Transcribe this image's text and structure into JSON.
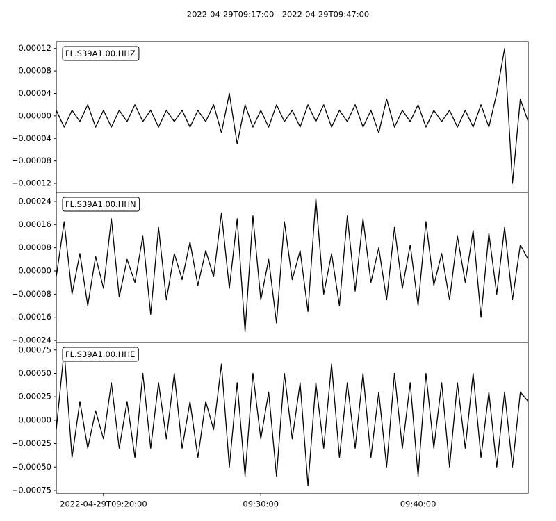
{
  "title": "2022-04-29T09:17:00  -  2022-04-29T09:47:00",
  "chart_data": [
    {
      "type": "line",
      "x": [
        "2022-04-29T09:17:00",
        "2022-04-29T09:17:30",
        "2022-04-29T09:18:00",
        "2022-04-29T09:18:30",
        "2022-04-29T09:19:00",
        "2022-04-29T09:19:30",
        "2022-04-29T09:20:00",
        "2022-04-29T09:20:30",
        "2022-04-29T09:21:00",
        "2022-04-29T09:21:30",
        "2022-04-29T09:22:00",
        "2022-04-29T09:22:30",
        "2022-04-29T09:23:00",
        "2022-04-29T09:23:30",
        "2022-04-29T09:24:00",
        "2022-04-29T09:24:30",
        "2022-04-29T09:25:00",
        "2022-04-29T09:25:30",
        "2022-04-29T09:26:00",
        "2022-04-29T09:26:30",
        "2022-04-29T09:27:00",
        "2022-04-29T09:27:30",
        "2022-04-29T09:28:00",
        "2022-04-29T09:28:30",
        "2022-04-29T09:29:00",
        "2022-04-29T09:29:30",
        "2022-04-29T09:30:00",
        "2022-04-29T09:30:30",
        "2022-04-29T09:31:00",
        "2022-04-29T09:31:30",
        "2022-04-29T09:32:00",
        "2022-04-29T09:32:30",
        "2022-04-29T09:33:00",
        "2022-04-29T09:33:30",
        "2022-04-29T09:34:00",
        "2022-04-29T09:34:30",
        "2022-04-29T09:35:00",
        "2022-04-29T09:35:30",
        "2022-04-29T09:36:00",
        "2022-04-29T09:36:30",
        "2022-04-29T09:37:00",
        "2022-04-29T09:37:30",
        "2022-04-29T09:38:00",
        "2022-04-29T09:38:30",
        "2022-04-29T09:39:00",
        "2022-04-29T09:39:30",
        "2022-04-29T09:40:00",
        "2022-04-29T09:40:30",
        "2022-04-29T09:41:00",
        "2022-04-29T09:41:30",
        "2022-04-29T09:42:00",
        "2022-04-29T09:42:30",
        "2022-04-29T09:43:00",
        "2022-04-29T09:43:30",
        "2022-04-29T09:44:00",
        "2022-04-29T09:44:30",
        "2022-04-29T09:45:00",
        "2022-04-29T09:45:30",
        "2022-04-29T09:46:00",
        "2022-04-29T09:46:30",
        "2022-04-29T09:47:00"
      ],
      "series": [
        {
          "name": "FL.S39A1.00.HHZ",
          "color": "#000000",
          "values": [
            1e-05,
            -2e-05,
            1e-05,
            -1e-05,
            2e-05,
            -2e-05,
            1e-05,
            -2e-05,
            1e-05,
            -1e-05,
            2e-05,
            -1e-05,
            1e-05,
            -2e-05,
            1e-05,
            -1e-05,
            1e-05,
            -2e-05,
            1e-05,
            -1e-05,
            2e-05,
            -3e-05,
            4e-05,
            -5e-05,
            2e-05,
            -2e-05,
            1e-05,
            -2e-05,
            2e-05,
            -1e-05,
            1e-05,
            -2e-05,
            2e-05,
            -1e-05,
            2e-05,
            -2e-05,
            1e-05,
            -1e-05,
            2e-05,
            -2e-05,
            1e-05,
            -3e-05,
            3e-05,
            -2e-05,
            1e-05,
            -1e-05,
            2e-05,
            -2e-05,
            1e-05,
            -1e-05,
            1e-05,
            -2e-05,
            1e-05,
            -2e-05,
            2e-05,
            -2e-05,
            4e-05,
            0.00012,
            -0.00012,
            3e-05,
            -1e-05
          ]
        }
      ],
      "xlim": [
        "2022-04-29T09:17:00",
        "2022-04-29T09:47:00"
      ],
      "ylim": [
        -0.000136,
        0.000132
      ],
      "yticks": [
        {
          "value": -0.00012,
          "label": "−0.00012"
        },
        {
          "value": -8e-05,
          "label": "−0.00008"
        },
        {
          "value": -4e-05,
          "label": "−0.00004"
        },
        {
          "value": 0,
          "label": "0.00000"
        },
        {
          "value": 4e-05,
          "label": "0.00004"
        },
        {
          "value": 8e-05,
          "label": "0.00008"
        },
        {
          "value": 0.00012,
          "label": "0.00012"
        }
      ]
    },
    {
      "type": "line",
      "x": [
        "2022-04-29T09:17:00",
        "2022-04-29T09:17:30",
        "2022-04-29T09:18:00",
        "2022-04-29T09:18:30",
        "2022-04-29T09:19:00",
        "2022-04-29T09:19:30",
        "2022-04-29T09:20:00",
        "2022-04-29T09:20:30",
        "2022-04-29T09:21:00",
        "2022-04-29T09:21:30",
        "2022-04-29T09:22:00",
        "2022-04-29T09:22:30",
        "2022-04-29T09:23:00",
        "2022-04-29T09:23:30",
        "2022-04-29T09:24:00",
        "2022-04-29T09:24:30",
        "2022-04-29T09:25:00",
        "2022-04-29T09:25:30",
        "2022-04-29T09:26:00",
        "2022-04-29T09:26:30",
        "2022-04-29T09:27:00",
        "2022-04-29T09:27:30",
        "2022-04-29T09:28:00",
        "2022-04-29T09:28:30",
        "2022-04-29T09:29:00",
        "2022-04-29T09:29:30",
        "2022-04-29T09:30:00",
        "2022-04-29T09:30:30",
        "2022-04-29T09:31:00",
        "2022-04-29T09:31:30",
        "2022-04-29T09:32:00",
        "2022-04-29T09:32:30",
        "2022-04-29T09:33:00",
        "2022-04-29T09:33:30",
        "2022-04-29T09:34:00",
        "2022-04-29T09:34:30",
        "2022-04-29T09:35:00",
        "2022-04-29T09:35:30",
        "2022-04-29T09:36:00",
        "2022-04-29T09:36:30",
        "2022-04-29T09:37:00",
        "2022-04-29T09:37:30",
        "2022-04-29T09:38:00",
        "2022-04-29T09:38:30",
        "2022-04-29T09:39:00",
        "2022-04-29T09:39:30",
        "2022-04-29T09:40:00",
        "2022-04-29T09:40:30",
        "2022-04-29T09:41:00",
        "2022-04-29T09:41:30",
        "2022-04-29T09:42:00",
        "2022-04-29T09:42:30",
        "2022-04-29T09:43:00",
        "2022-04-29T09:43:30",
        "2022-04-29T09:44:00",
        "2022-04-29T09:44:30",
        "2022-04-29T09:45:00",
        "2022-04-29T09:45:30",
        "2022-04-29T09:46:00",
        "2022-04-29T09:46:30",
        "2022-04-29T09:47:00"
      ],
      "series": [
        {
          "name": "FL.S39A1.00.HHN",
          "color": "#000000",
          "values": [
            -2e-05,
            0.00017,
            -8e-05,
            6e-05,
            -0.00012,
            5e-05,
            -6e-05,
            0.00018,
            -9e-05,
            4e-05,
            -4e-05,
            0.00012,
            -0.00015,
            0.00015,
            -0.0001,
            6e-05,
            -3e-05,
            0.0001,
            -5e-05,
            7e-05,
            -2e-05,
            0.0002,
            -6e-05,
            0.00018,
            -0.00021,
            0.00019,
            -0.0001,
            4e-05,
            -0.00018,
            0.00017,
            -3e-05,
            7e-05,
            -0.00014,
            0.00025,
            -8e-05,
            6e-05,
            -0.00012,
            0.00019,
            -7e-05,
            0.00018,
            -4e-05,
            8e-05,
            -0.0001,
            0.00015,
            -6e-05,
            9e-05,
            -0.00012,
            0.00017,
            -5e-05,
            6e-05,
            -0.0001,
            0.00012,
            -4e-05,
            0.00014,
            -0.00016,
            0.00013,
            -8e-05,
            0.00015,
            -0.0001,
            9e-05,
            4e-05
          ]
        }
      ],
      "xlim": [
        "2022-04-29T09:17:00",
        "2022-04-29T09:47:00"
      ],
      "ylim": [
        -0.000247,
        0.000271
      ],
      "yticks": [
        {
          "value": -0.00024,
          "label": "−0.00024"
        },
        {
          "value": -0.00016,
          "label": "−0.00016"
        },
        {
          "value": -8e-05,
          "label": "−0.00008"
        },
        {
          "value": 0,
          "label": "0.00000"
        },
        {
          "value": 8e-05,
          "label": "0.00008"
        },
        {
          "value": 0.00016,
          "label": "0.00016"
        },
        {
          "value": 0.00024,
          "label": "0.00024"
        }
      ]
    },
    {
      "type": "line",
      "x": [
        "2022-04-29T09:17:00",
        "2022-04-29T09:17:30",
        "2022-04-29T09:18:00",
        "2022-04-29T09:18:30",
        "2022-04-29T09:19:00",
        "2022-04-29T09:19:30",
        "2022-04-29T09:20:00",
        "2022-04-29T09:20:30",
        "2022-04-29T09:21:00",
        "2022-04-29T09:21:30",
        "2022-04-29T09:22:00",
        "2022-04-29T09:22:30",
        "2022-04-29T09:23:00",
        "2022-04-29T09:23:30",
        "2022-04-29T09:24:00",
        "2022-04-29T09:24:30",
        "2022-04-29T09:25:00",
        "2022-04-29T09:25:30",
        "2022-04-29T09:26:00",
        "2022-04-29T09:26:30",
        "2022-04-29T09:27:00",
        "2022-04-29T09:27:30",
        "2022-04-29T09:28:00",
        "2022-04-29T09:28:30",
        "2022-04-29T09:29:00",
        "2022-04-29T09:29:30",
        "2022-04-29T09:30:00",
        "2022-04-29T09:30:30",
        "2022-04-29T09:31:00",
        "2022-04-29T09:31:30",
        "2022-04-29T09:32:00",
        "2022-04-29T09:32:30",
        "2022-04-29T09:33:00",
        "2022-04-29T09:33:30",
        "2022-04-29T09:34:00",
        "2022-04-29T09:34:30",
        "2022-04-29T09:35:00",
        "2022-04-29T09:35:30",
        "2022-04-29T09:36:00",
        "2022-04-29T09:36:30",
        "2022-04-29T09:37:00",
        "2022-04-29T09:37:30",
        "2022-04-29T09:38:00",
        "2022-04-29T09:38:30",
        "2022-04-29T09:39:00",
        "2022-04-29T09:39:30",
        "2022-04-29T09:40:00",
        "2022-04-29T09:40:30",
        "2022-04-29T09:41:00",
        "2022-04-29T09:41:30",
        "2022-04-29T09:42:00",
        "2022-04-29T09:42:30",
        "2022-04-29T09:43:00",
        "2022-04-29T09:43:30",
        "2022-04-29T09:44:00",
        "2022-04-29T09:44:30",
        "2022-04-29T09:45:00",
        "2022-04-29T09:45:30",
        "2022-04-29T09:46:00",
        "2022-04-29T09:46:30",
        "2022-04-29T09:47:00"
      ],
      "series": [
        {
          "name": "FL.S39A1.00.HHE",
          "color": "#000000",
          "values": [
            -0.0001,
            0.00075,
            -0.0004,
            0.0002,
            -0.0003,
            0.0001,
            -0.0002,
            0.0004,
            -0.0003,
            0.0002,
            -0.0004,
            0.0005,
            -0.0003,
            0.0004,
            -0.0002,
            0.0005,
            -0.0003,
            0.0002,
            -0.0004,
            0.0002,
            -0.0001,
            0.0006,
            -0.0005,
            0.0004,
            -0.0006,
            0.0005,
            -0.0002,
            0.0003,
            -0.0006,
            0.0005,
            -0.0002,
            0.0004,
            -0.0007,
            0.0004,
            -0.0003,
            0.0006,
            -0.0004,
            0.0004,
            -0.0003,
            0.0005,
            -0.0004,
            0.0003,
            -0.0005,
            0.0005,
            -0.0003,
            0.0004,
            -0.0006,
            0.0005,
            -0.0003,
            0.0004,
            -0.0005,
            0.0004,
            -0.0003,
            0.0005,
            -0.0004,
            0.0003,
            -0.0005,
            0.0003,
            -0.0005,
            0.0003,
            0.0002
          ]
        }
      ],
      "xlim": [
        "2022-04-29T09:17:00",
        "2022-04-29T09:47:00"
      ],
      "ylim": [
        -0.00078,
        0.00083
      ],
      "yticks": [
        {
          "value": -0.00075,
          "label": "−0.00075"
        },
        {
          "value": -0.0005,
          "label": "−0.00050"
        },
        {
          "value": -0.00025,
          "label": "−0.00025"
        },
        {
          "value": 0,
          "label": "0.00000"
        },
        {
          "value": 0.00025,
          "label": "0.00025"
        },
        {
          "value": 0.0005,
          "label": "0.00050"
        },
        {
          "value": 0.00075,
          "label": "0.00075"
        }
      ],
      "xticks": [
        "2022-04-29T09:20:00",
        {
          "value": "2022-04-29T09:30:00",
          "label": "09:30:00"
        },
        {
          "value": "2022-04-29T09:40:00",
          "label": "09:40:00"
        }
      ]
    }
  ]
}
